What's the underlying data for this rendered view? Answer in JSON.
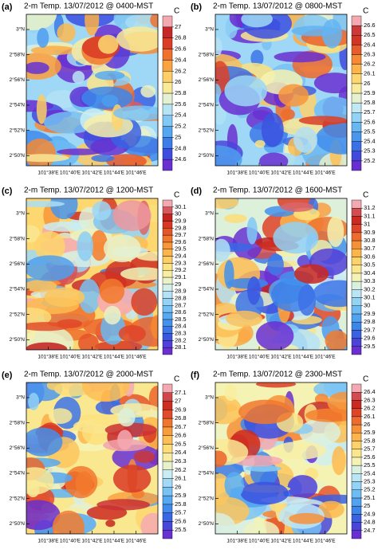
{
  "chart_data": [
    {
      "type": "contour",
      "panel_label": "(a)",
      "title": "2-m Temp. 13/07/2012 @ 0400-MST",
      "unit": "C",
      "xlim": [
        101.6,
        101.8
      ],
      "ylim": [
        2.82,
        3.02
      ],
      "xticks": [
        {
          "value": 101.6333,
          "label": "101°38'E"
        },
        {
          "value": 101.6667,
          "label": "101°40'E"
        },
        {
          "value": 101.7,
          "label": "101°42'E"
        },
        {
          "value": 101.7333,
          "label": "101°44'E"
        },
        {
          "value": 101.7667,
          "label": "101°46'E"
        }
      ],
      "yticks": [
        {
          "value": 2.8333,
          "label": "2°50'N"
        },
        {
          "value": 2.8667,
          "label": "2°52'N"
        },
        {
          "value": 2.9,
          "label": "2°54'N"
        },
        {
          "value": 2.9333,
          "label": "2°56'N"
        },
        {
          "value": 2.9667,
          "label": "2°58'N"
        },
        {
          "value": 3,
          "label": "3°N"
        }
      ],
      "levels": [
        24.6,
        24.8,
        25,
        25.2,
        25.4,
        25.6,
        25.8,
        26,
        26.2,
        26.4,
        26.6,
        26.8,
        27
      ]
    },
    {
      "type": "contour",
      "panel_label": "(b)",
      "title": "2-m Temp. 13/07/2012 @ 0800-MST",
      "unit": "C",
      "xlim": [
        101.6,
        101.8
      ],
      "ylim": [
        2.82,
        3.02
      ],
      "xticks": [
        {
          "value": 101.6333,
          "label": "101°38'E"
        },
        {
          "value": 101.6667,
          "label": "101°40'E"
        },
        {
          "value": 101.7,
          "label": "101°42'E"
        },
        {
          "value": 101.7333,
          "label": "101°44'E"
        },
        {
          "value": 101.7667,
          "label": "101°46'E"
        }
      ],
      "yticks": [
        {
          "value": 2.8333,
          "label": "2°50'N"
        },
        {
          "value": 2.8667,
          "label": "2°52'N"
        },
        {
          "value": 2.9,
          "label": "2°54'N"
        },
        {
          "value": 2.9333,
          "label": "2°56'N"
        },
        {
          "value": 2.9667,
          "label": "2°58'N"
        },
        {
          "value": 3,
          "label": "3°N"
        }
      ],
      "levels": [
        25.2,
        25.3,
        25.4,
        25.5,
        25.6,
        25.7,
        25.8,
        25.9,
        26,
        26.1,
        26.2,
        26.3,
        26.4,
        26.5,
        26.6
      ]
    },
    {
      "type": "contour",
      "panel_label": "(c)",
      "title": "2-m Temp. 13/07/2012 @ 1200-MST",
      "unit": "C",
      "xlim": [
        101.6,
        101.8
      ],
      "ylim": [
        2.82,
        3.02
      ],
      "xticks": [
        {
          "value": 101.6333,
          "label": "101°38'E"
        },
        {
          "value": 101.6667,
          "label": "101°40'E"
        },
        {
          "value": 101.7,
          "label": "101°42'E"
        },
        {
          "value": 101.7333,
          "label": "101°44'E"
        },
        {
          "value": 101.7667,
          "label": "101°46'E"
        }
      ],
      "yticks": [
        {
          "value": 2.8333,
          "label": "2°50'N"
        },
        {
          "value": 2.8667,
          "label": "2°52'N"
        },
        {
          "value": 2.9,
          "label": "2°54'N"
        },
        {
          "value": 2.9333,
          "label": "2°56'N"
        },
        {
          "value": 2.9667,
          "label": "2°58'N"
        },
        {
          "value": 3,
          "label": "3°N"
        }
      ],
      "levels": [
        28.1,
        28.2,
        28.3,
        28.4,
        28.5,
        28.6,
        28.7,
        28.8,
        28.9,
        29,
        29.1,
        29.2,
        29.3,
        29.4,
        29.5,
        29.6,
        29.7,
        29.8,
        29.9,
        30,
        30.1
      ]
    },
    {
      "type": "contour",
      "panel_label": "(d)",
      "title": "2-m Temp. 13/07/2012 @ 1600-MST",
      "unit": "C",
      "xlim": [
        101.6,
        101.8
      ],
      "ylim": [
        2.82,
        3.02
      ],
      "xticks": [
        {
          "value": 101.6333,
          "label": "101°38'E"
        },
        {
          "value": 101.6667,
          "label": "101°40'E"
        },
        {
          "value": 101.7,
          "label": "101°42'E"
        },
        {
          "value": 101.7333,
          "label": "101°44'E"
        },
        {
          "value": 101.7667,
          "label": "101°46'E"
        }
      ],
      "yticks": [
        {
          "value": 2.8333,
          "label": "2°50'N"
        },
        {
          "value": 2.8667,
          "label": "2°52'N"
        },
        {
          "value": 2.9,
          "label": "2°54'N"
        },
        {
          "value": 2.9333,
          "label": "2°56'N"
        },
        {
          "value": 2.9667,
          "label": "2°58'N"
        },
        {
          "value": 3,
          "label": "3°N"
        }
      ],
      "levels": [
        29.5,
        29.6,
        29.7,
        29.8,
        29.9,
        30,
        30.1,
        30.2,
        30.3,
        30.4,
        30.5,
        30.6,
        30.7,
        30.8,
        30.9,
        31,
        31.1,
        31.2
      ]
    },
    {
      "type": "contour",
      "panel_label": "(e)",
      "title": "2-m Temp. 13/07/2012 @ 2000-MST",
      "unit": "C",
      "xlim": [
        101.6,
        101.8
      ],
      "ylim": [
        2.82,
        3.02
      ],
      "xticks": [
        {
          "value": 101.6333,
          "label": "101°38'E"
        },
        {
          "value": 101.6667,
          "label": "101°40'E"
        },
        {
          "value": 101.7,
          "label": "101°42'E"
        },
        {
          "value": 101.7333,
          "label": "101°44'E"
        },
        {
          "value": 101.7667,
          "label": "101°46'E"
        }
      ],
      "yticks": [
        {
          "value": 2.8333,
          "label": "2°50'N"
        },
        {
          "value": 2.8667,
          "label": "2°52'N"
        },
        {
          "value": 2.9,
          "label": "2°54'N"
        },
        {
          "value": 2.9333,
          "label": "2°56'N"
        },
        {
          "value": 2.9667,
          "label": "2°58'N"
        },
        {
          "value": 3,
          "label": "3°N"
        }
      ],
      "levels": [
        25.5,
        25.6,
        25.7,
        25.8,
        25.9,
        26,
        26.1,
        26.2,
        26.3,
        26.4,
        26.5,
        26.6,
        26.7,
        26.8,
        26.9,
        27,
        27.1
      ]
    },
    {
      "type": "contour",
      "panel_label": "(f)",
      "title": "2-m Temp. 13/07/2012 @ 2300-MST",
      "unit": "C",
      "xlim": [
        101.6,
        101.8
      ],
      "ylim": [
        2.82,
        3.02
      ],
      "xticks": [
        {
          "value": 101.6333,
          "label": "101°38'E"
        },
        {
          "value": 101.6667,
          "label": "101°40'E"
        },
        {
          "value": 101.7,
          "label": "101°42'E"
        },
        {
          "value": 101.7333,
          "label": "101°44'E"
        },
        {
          "value": 101.7667,
          "label": "101°46'E"
        }
      ],
      "yticks": [
        {
          "value": 2.8333,
          "label": "2°50'N"
        },
        {
          "value": 2.8667,
          "label": "2°52'N"
        },
        {
          "value": 2.9,
          "label": "2°54'N"
        },
        {
          "value": 2.9333,
          "label": "2°56'N"
        },
        {
          "value": 2.9667,
          "label": "2°58'N"
        },
        {
          "value": 3,
          "label": "3°N"
        }
      ],
      "levels": [
        24.7,
        24.8,
        24.9,
        25,
        25.1,
        25.2,
        25.3,
        25.4,
        25.5,
        25.6,
        25.7,
        25.8,
        25.9,
        26,
        26.1,
        26.2,
        26.3,
        26.4
      ]
    }
  ],
  "colormap": [
    "#6a2fd0",
    "#3b4fe0",
    "#3c86ea",
    "#5cb0f2",
    "#93d3f6",
    "#cdeef4",
    "#f5f3b4",
    "#fde07a",
    "#fdb54a",
    "#f47f2e",
    "#df4428",
    "#c21d1d",
    "#f4a9b2"
  ]
}
